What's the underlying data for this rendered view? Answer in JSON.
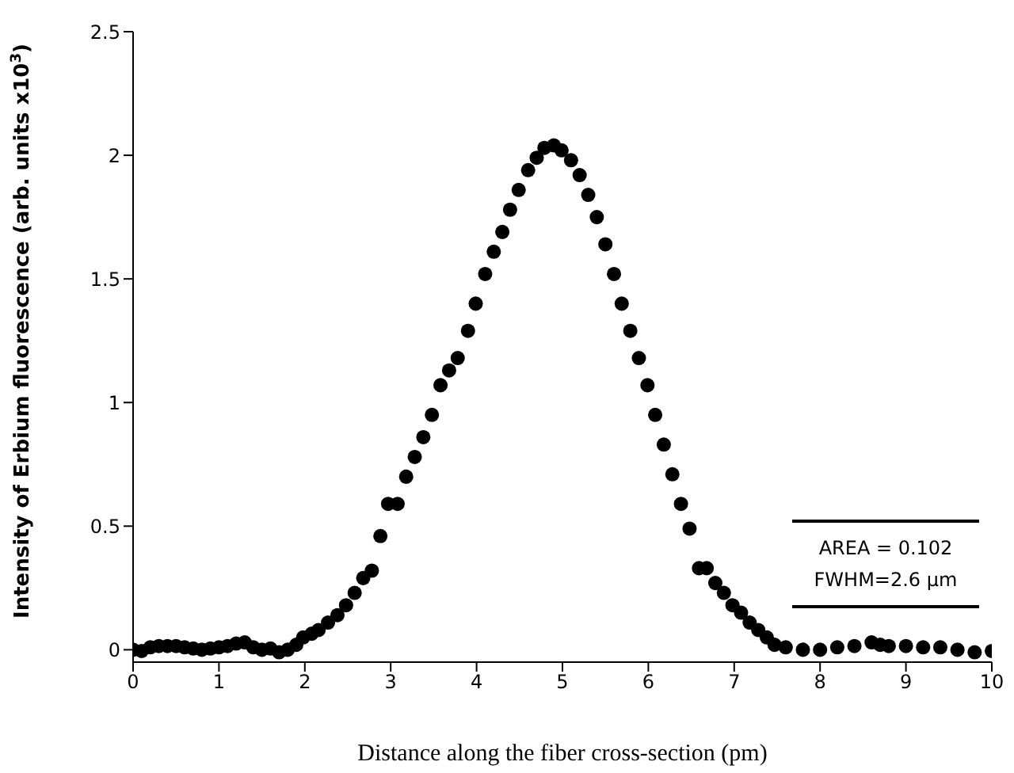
{
  "chart_data": {
    "type": "scatter",
    "xlabel": "Distance along the fiber cross-section (pm)",
    "ylabel": "Intensity of Erbium fluorescence (arb. units x10$^{3}$)",
    "annotations": [
      "AREA = 0.102",
      "FWHM=2.6 µm"
    ],
    "x": [
      0,
      0.1,
      0.2,
      0.3,
      0.4,
      0.5,
      0.6,
      0.7,
      0.8,
      0.9,
      1.0,
      1.1,
      1.2,
      1.3,
      1.4,
      1.5,
      1.6,
      1.7,
      1.8,
      1.9,
      1.98,
      2.08,
      2.16,
      2.27,
      2.38,
      2.48,
      2.58,
      2.68,
      2.78,
      2.88,
      2.97,
      3.08,
      3.18,
      3.28,
      3.38,
      3.48,
      3.58,
      3.68,
      3.78,
      3.9,
      3.99,
      4.1,
      4.2,
      4.3,
      4.39,
      4.49,
      4.6,
      4.7,
      4.79,
      4.9,
      4.99,
      5.1,
      5.2,
      5.3,
      5.4,
      5.5,
      5.6,
      5.69,
      5.79,
      5.89,
      5.99,
      6.08,
      6.18,
      6.28,
      6.38,
      6.48,
      6.59,
      6.68,
      6.78,
      6.88,
      6.98,
      7.08,
      7.18,
      7.28,
      7.38,
      7.47,
      7.6,
      7.8,
      8.0,
      8.2,
      8.4,
      8.6,
      8.7,
      8.8,
      9.0,
      9.2,
      9.4,
      9.6,
      9.8,
      10.0
    ],
    "series": [
      {
        "color": "#000000",
        "values": [
          0.0,
          -0.005,
          0.01,
          0.015,
          0.015,
          0.015,
          0.01,
          0.005,
          0.0,
          0.005,
          0.01,
          0.015,
          0.025,
          0.03,
          0.01,
          0.0,
          0.005,
          -0.01,
          0.0,
          0.02,
          0.05,
          0.065,
          0.08,
          0.11,
          0.14,
          0.18,
          0.23,
          0.29,
          0.32,
          0.46,
          0.59,
          0.59,
          0.7,
          0.78,
          0.86,
          0.95,
          1.07,
          1.13,
          1.18,
          1.29,
          1.4,
          1.52,
          1.61,
          1.69,
          1.78,
          1.86,
          1.94,
          1.99,
          2.03,
          2.04,
          2.02,
          1.98,
          1.92,
          1.84,
          1.75,
          1.64,
          1.52,
          1.4,
          1.29,
          1.18,
          1.07,
          0.95,
          0.83,
          0.71,
          0.59,
          0.49,
          0.33,
          0.33,
          0.27,
          0.23,
          0.18,
          0.15,
          0.11,
          0.08,
          0.05,
          0.02,
          0.01,
          0.0,
          0.0,
          0.01,
          0.015,
          0.03,
          0.02,
          0.015,
          0.015,
          0.01,
          0.01,
          0.0,
          -0.01,
          -0.005
        ]
      }
    ],
    "xlim": [
      0,
      10
    ],
    "xticks": [
      0,
      1,
      2,
      3,
      4,
      5,
      6,
      7,
      8,
      9,
      10
    ],
    "ylim": [
      -0.05,
      2.5
    ],
    "yticks": [
      0.0,
      0.5,
      1.0,
      1.5,
      2.0,
      2.5
    ],
    "marker": "circle",
    "grid": false,
    "legend": false
  }
}
